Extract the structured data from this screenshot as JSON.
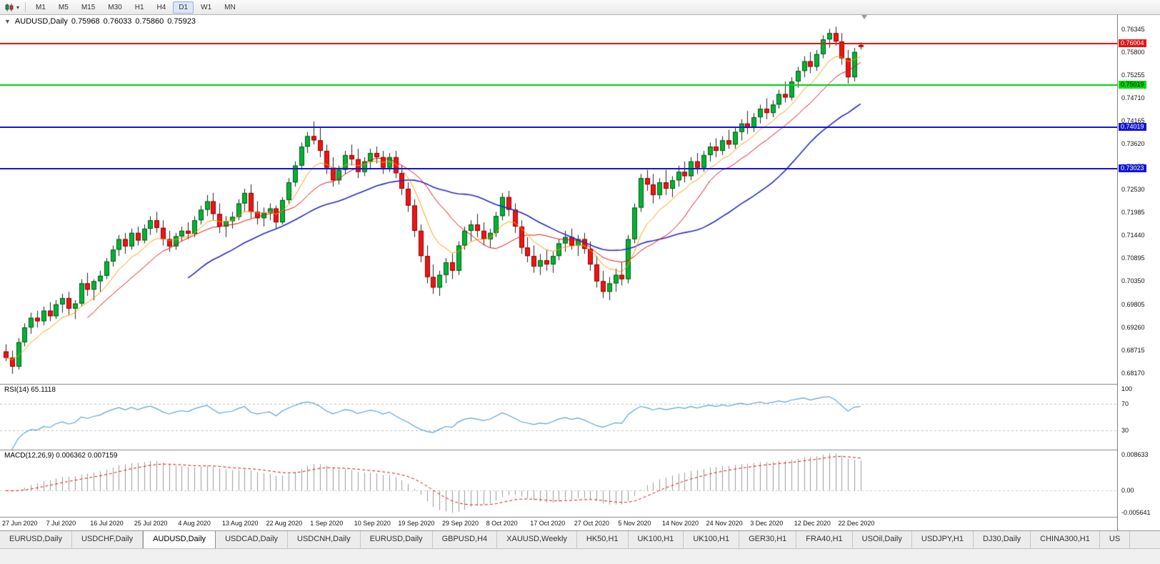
{
  "toolbar": {
    "timeframes": [
      "M1",
      "M5",
      "M15",
      "M30",
      "H1",
      "H4",
      "D1",
      "W1",
      "MN"
    ],
    "active": "D1"
  },
  "title_bar": {
    "symbol": "AUDUSD,Daily",
    "open": "0.75968",
    "high": "0.76033",
    "low": "0.75860",
    "close": "0.75923"
  },
  "price_axis": {
    "ticks": [
      "0.76345",
      "0.75800",
      "0.75255",
      "0.74710",
      "0.74165",
      "0.73620",
      "0.73075",
      "0.72530",
      "0.71985",
      "0.71440",
      "0.70895",
      "0.70350",
      "0.69805",
      "0.69260",
      "0.68715",
      "0.68170"
    ]
  },
  "levels": [
    {
      "label": "0.76004",
      "price": 0.76004,
      "color": "#e81414",
      "text_color": "#ffffff"
    },
    {
      "label": "0.75019",
      "price": 0.75019,
      "color": "#00d80a",
      "text_color": "#000000"
    },
    {
      "label": "0.74019",
      "price": 0.74019,
      "color": "#1414d8",
      "text_color": "#ffffff"
    },
    {
      "label": "0.73023",
      "price": 0.73023,
      "color": "#1414d8",
      "text_color": "#ffffff"
    }
  ],
  "rsi": {
    "label": "RSI(14) 65.1118",
    "period": 14,
    "levels": [
      70,
      30
    ],
    "axis_labels": [
      "100",
      "70",
      "30"
    ],
    "line_color": "#58a4d8"
  },
  "macd": {
    "label": "MACD(12,26,9) 0.006362 0.007159",
    "fast": 12,
    "slow": 26,
    "signal": 9,
    "axis_labels": [
      "0.008633",
      "0.00",
      "-0.005641"
    ],
    "scale_max": 0.0095,
    "scale_min": -0.0062,
    "histogram_color": "#9a9a9a",
    "signal_color": "#e01010"
  },
  "x_axis": {
    "labels": [
      "27 Jun 2020",
      "7 Jul 2020",
      "16 Jul 2020",
      "25 Jul 2020",
      "4 Aug 2020",
      "13 Aug 2020",
      "22 Aug 2020",
      "1 Sep 2020",
      "10 Sep 2020",
      "19 Sep 2020",
      "29 Sep 2020",
      "8 Oct 2020",
      "17 Oct 2020",
      "27 Oct 2020",
      "5 Nov 2020",
      "14 Nov 2020",
      "24 Nov 2020",
      "3 Dec 2020",
      "12 Dec 2020",
      "22 Dec 2020"
    ],
    "step": 7
  },
  "tabs": {
    "items": [
      "EURUSD,Daily",
      "USDCHF,Daily",
      "AUDUSD,Daily",
      "USDCAD,Daily",
      "USDCNH,Daily",
      "EURUSD,Daily",
      "GBPUSD,H4",
      "XAUUSD,Weekly",
      "HK50,H1",
      "UK100,H1",
      "UK100,H1",
      "GER30,H1",
      "FRA40,H1",
      "USOil,Daily",
      "USDJPY,H1",
      "DJ30,Daily",
      "CHINA300,H1",
      "US"
    ],
    "active_index": 2
  },
  "chart_data": {
    "type": "candlestick",
    "symbol": "AUDUSD",
    "timeframe": "Daily",
    "up_color": "#00b432",
    "down_color": "#f01414",
    "up_border": "#005a18",
    "down_border": "#8c0000",
    "y_range": [
      0.6791,
      0.7668
    ],
    "moving_averages": [
      {
        "type": "sma",
        "period": 30,
        "color": "#2828c8",
        "width": 1.6
      },
      {
        "type": "sma",
        "period": 14,
        "color": "#e01010",
        "width": 1
      },
      {
        "type": "ema",
        "period": 8,
        "color": "#ff9c00",
        "width": 1
      }
    ],
    "candles": [
      [
        0.6868,
        0.6885,
        0.6845,
        0.6853
      ],
      [
        0.6853,
        0.687,
        0.6815,
        0.6832
      ],
      [
        0.6832,
        0.69,
        0.6825,
        0.689
      ],
      [
        0.689,
        0.6935,
        0.688,
        0.6925
      ],
      [
        0.6925,
        0.696,
        0.691,
        0.6948
      ],
      [
        0.6948,
        0.6965,
        0.6925,
        0.694
      ],
      [
        0.694,
        0.6975,
        0.693,
        0.6965
      ],
      [
        0.6965,
        0.6985,
        0.694,
        0.6952
      ],
      [
        0.6952,
        0.699,
        0.6945,
        0.698
      ],
      [
        0.698,
        0.7005,
        0.696,
        0.6995
      ],
      [
        0.6995,
        0.701,
        0.6955,
        0.697
      ],
      [
        0.697,
        0.699,
        0.6945,
        0.6982
      ],
      [
        0.6982,
        0.704,
        0.6975,
        0.703
      ],
      [
        0.703,
        0.7055,
        0.7,
        0.7015
      ],
      [
        0.7015,
        0.704,
        0.699,
        0.7035
      ],
      [
        0.7035,
        0.706,
        0.701,
        0.7048
      ],
      [
        0.7048,
        0.709,
        0.704,
        0.7082
      ],
      [
        0.7082,
        0.712,
        0.707,
        0.711
      ],
      [
        0.711,
        0.7145,
        0.7095,
        0.7135
      ],
      [
        0.7135,
        0.715,
        0.71,
        0.7118
      ],
      [
        0.7118,
        0.716,
        0.711,
        0.715
      ],
      [
        0.715,
        0.7165,
        0.712,
        0.7132
      ],
      [
        0.7132,
        0.717,
        0.7125,
        0.716
      ],
      [
        0.716,
        0.719,
        0.7145,
        0.718
      ],
      [
        0.718,
        0.72,
        0.715,
        0.7162
      ],
      [
        0.7162,
        0.718,
        0.712,
        0.7135
      ],
      [
        0.7135,
        0.7155,
        0.7105,
        0.7118
      ],
      [
        0.7118,
        0.715,
        0.711,
        0.7142
      ],
      [
        0.7142,
        0.7165,
        0.713,
        0.7155
      ],
      [
        0.7155,
        0.7175,
        0.7135,
        0.7148
      ],
      [
        0.7148,
        0.719,
        0.714,
        0.718
      ],
      [
        0.718,
        0.7215,
        0.717,
        0.7205
      ],
      [
        0.7205,
        0.724,
        0.719,
        0.7225
      ],
      [
        0.7225,
        0.7245,
        0.718,
        0.7195
      ],
      [
        0.7195,
        0.722,
        0.715,
        0.7165
      ],
      [
        0.7165,
        0.719,
        0.714,
        0.7178
      ],
      [
        0.7178,
        0.72,
        0.716,
        0.7188
      ],
      [
        0.7188,
        0.723,
        0.718,
        0.722
      ],
      [
        0.722,
        0.7255,
        0.72,
        0.7245
      ],
      [
        0.7245,
        0.7265,
        0.7185,
        0.72
      ],
      [
        0.72,
        0.7225,
        0.717,
        0.7185
      ],
      [
        0.7185,
        0.721,
        0.7165,
        0.7198
      ],
      [
        0.7198,
        0.722,
        0.718,
        0.7208
      ],
      [
        0.7208,
        0.7215,
        0.716,
        0.7175
      ],
      [
        0.7175,
        0.7235,
        0.717,
        0.7228
      ],
      [
        0.7228,
        0.728,
        0.722,
        0.727
      ],
      [
        0.727,
        0.732,
        0.726,
        0.731
      ],
      [
        0.731,
        0.7365,
        0.73,
        0.7355
      ],
      [
        0.7355,
        0.739,
        0.734,
        0.738
      ],
      [
        0.738,
        0.7415,
        0.736,
        0.737
      ],
      [
        0.737,
        0.74,
        0.733,
        0.7345
      ],
      [
        0.7345,
        0.736,
        0.729,
        0.7305
      ],
      [
        0.7305,
        0.733,
        0.726,
        0.7275
      ],
      [
        0.7275,
        0.731,
        0.7265,
        0.73
      ],
      [
        0.73,
        0.7345,
        0.729,
        0.7335
      ],
      [
        0.7335,
        0.736,
        0.731,
        0.7325
      ],
      [
        0.7325,
        0.735,
        0.728,
        0.7295
      ],
      [
        0.7295,
        0.733,
        0.7285,
        0.732
      ],
      [
        0.732,
        0.735,
        0.73,
        0.734
      ],
      [
        0.734,
        0.7355,
        0.7315,
        0.733
      ],
      [
        0.733,
        0.7345,
        0.729,
        0.7305
      ],
      [
        0.7305,
        0.734,
        0.7295,
        0.733
      ],
      [
        0.733,
        0.7345,
        0.728,
        0.7292
      ],
      [
        0.7292,
        0.731,
        0.724,
        0.7255
      ],
      [
        0.7255,
        0.727,
        0.72,
        0.7215
      ],
      [
        0.7215,
        0.723,
        0.714,
        0.7155
      ],
      [
        0.7155,
        0.717,
        0.708,
        0.7095
      ],
      [
        0.7095,
        0.712,
        0.703,
        0.7045
      ],
      [
        0.7045,
        0.7075,
        0.7005,
        0.702
      ],
      [
        0.702,
        0.706,
        0.7,
        0.705
      ],
      [
        0.705,
        0.709,
        0.703,
        0.708
      ],
      [
        0.708,
        0.71,
        0.704,
        0.706
      ],
      [
        0.706,
        0.713,
        0.705,
        0.712
      ],
      [
        0.712,
        0.7165,
        0.711,
        0.7155
      ],
      [
        0.7155,
        0.718,
        0.713,
        0.717
      ],
      [
        0.717,
        0.7195,
        0.714,
        0.7155
      ],
      [
        0.7155,
        0.7175,
        0.712,
        0.7135
      ],
      [
        0.7135,
        0.716,
        0.7115,
        0.715
      ],
      [
        0.715,
        0.72,
        0.714,
        0.719
      ],
      [
        0.719,
        0.7245,
        0.718,
        0.7235
      ],
      [
        0.7235,
        0.725,
        0.719,
        0.7205
      ],
      [
        0.7205,
        0.722,
        0.715,
        0.7165
      ],
      [
        0.7165,
        0.718,
        0.71,
        0.7115
      ],
      [
        0.7115,
        0.714,
        0.708,
        0.7095
      ],
      [
        0.7095,
        0.712,
        0.7055,
        0.707
      ],
      [
        0.707,
        0.71,
        0.705,
        0.7085
      ],
      [
        0.7085,
        0.711,
        0.706,
        0.7075
      ],
      [
        0.7075,
        0.7105,
        0.7055,
        0.7095
      ],
      [
        0.7095,
        0.7135,
        0.7085,
        0.7125
      ],
      [
        0.7125,
        0.7155,
        0.7105,
        0.714
      ],
      [
        0.714,
        0.716,
        0.711,
        0.712
      ],
      [
        0.712,
        0.7145,
        0.7095,
        0.7135
      ],
      [
        0.7135,
        0.715,
        0.71,
        0.7112
      ],
      [
        0.7112,
        0.713,
        0.706,
        0.7075
      ],
      [
        0.7075,
        0.7095,
        0.702,
        0.7035
      ],
      [
        0.7035,
        0.706,
        0.6995,
        0.701
      ],
      [
        0.701,
        0.7045,
        0.699,
        0.703
      ],
      [
        0.703,
        0.7065,
        0.701,
        0.705
      ],
      [
        0.705,
        0.708,
        0.7025,
        0.704
      ],
      [
        0.704,
        0.7145,
        0.703,
        0.7135
      ],
      [
        0.7135,
        0.722,
        0.7125,
        0.721
      ],
      [
        0.721,
        0.729,
        0.72,
        0.728
      ],
      [
        0.728,
        0.73,
        0.725,
        0.7265
      ],
      [
        0.7265,
        0.729,
        0.722,
        0.724
      ],
      [
        0.724,
        0.728,
        0.723,
        0.727
      ],
      [
        0.727,
        0.73,
        0.724,
        0.7255
      ],
      [
        0.7255,
        0.7285,
        0.7235,
        0.7275
      ],
      [
        0.7275,
        0.731,
        0.726,
        0.7295
      ],
      [
        0.7295,
        0.732,
        0.727,
        0.7285
      ],
      [
        0.7285,
        0.733,
        0.7275,
        0.732
      ],
      [
        0.732,
        0.734,
        0.729,
        0.7305
      ],
      [
        0.7305,
        0.7345,
        0.7295,
        0.7335
      ],
      [
        0.7335,
        0.7365,
        0.732,
        0.7355
      ],
      [
        0.7355,
        0.7375,
        0.733,
        0.7345
      ],
      [
        0.7345,
        0.738,
        0.7335,
        0.737
      ],
      [
        0.737,
        0.7395,
        0.735,
        0.736
      ],
      [
        0.736,
        0.74,
        0.735,
        0.739
      ],
      [
        0.739,
        0.742,
        0.737,
        0.741
      ],
      [
        0.741,
        0.744,
        0.7385,
        0.74
      ],
      [
        0.74,
        0.7435,
        0.739,
        0.7425
      ],
      [
        0.7425,
        0.7455,
        0.741,
        0.7445
      ],
      [
        0.7445,
        0.747,
        0.742,
        0.7435
      ],
      [
        0.7435,
        0.7465,
        0.7425,
        0.7455
      ],
      [
        0.7455,
        0.749,
        0.7445,
        0.748
      ],
      [
        0.748,
        0.751,
        0.746,
        0.7472
      ],
      [
        0.7472,
        0.752,
        0.7465,
        0.751
      ],
      [
        0.751,
        0.7545,
        0.7495,
        0.7535
      ],
      [
        0.7535,
        0.757,
        0.752,
        0.7558
      ],
      [
        0.7558,
        0.758,
        0.753,
        0.7545
      ],
      [
        0.7545,
        0.7585,
        0.7535,
        0.7575
      ],
      [
        0.7575,
        0.762,
        0.7565,
        0.761
      ],
      [
        0.761,
        0.7635,
        0.759,
        0.7625
      ],
      [
        0.7625,
        0.764,
        0.7595,
        0.7605
      ],
      [
        0.7605,
        0.7625,
        0.755,
        0.7565
      ],
      [
        0.7565,
        0.7585,
        0.7505,
        0.752
      ],
      [
        0.752,
        0.759,
        0.751,
        0.758
      ],
      [
        0.75968,
        0.76033,
        0.7586,
        0.75923
      ]
    ]
  }
}
